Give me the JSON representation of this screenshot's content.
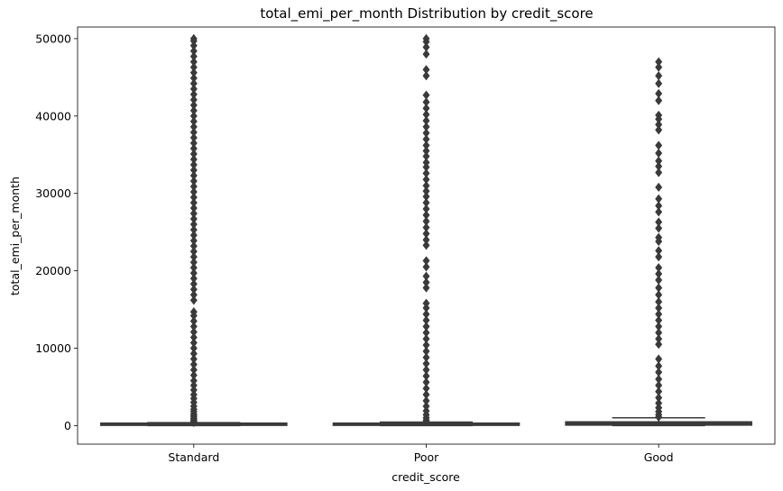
{
  "chart_data": {
    "type": "box",
    "title": "total_emi_per_month Distribution by credit_score",
    "xlabel": "credit_score",
    "ylabel": "total_emi_per_month",
    "categories": [
      "Standard",
      "Poor",
      "Good"
    ],
    "ylim": [
      -2400,
      51500
    ],
    "yticks": [
      0,
      10000,
      20000,
      30000,
      40000,
      50000
    ],
    "grid": false,
    "color": "#3a3a3a",
    "boxes": [
      {
        "category": "Standard",
        "q1": 30,
        "median": 70,
        "q3": 170,
        "whisker_low": 0,
        "whisker_high": 380,
        "outliers": [
          400,
          500,
          600,
          750,
          900,
          1100,
          1300,
          1500,
          1800,
          2100,
          2500,
          3000,
          3500,
          4000,
          4600,
          5200,
          5800,
          6500,
          7200,
          7900,
          8600,
          9300,
          10000,
          10700,
          11400,
          12100,
          12800,
          13500,
          14200,
          14700,
          16200,
          16900,
          17600,
          18300,
          19000,
          19700,
          20400,
          21100,
          21800,
          22500,
          23200,
          23900,
          24600,
          25300,
          26000,
          26700,
          27400,
          28100,
          28800,
          29500,
          30200,
          30900,
          31600,
          32300,
          33000,
          33700,
          34400,
          35100,
          35800,
          36500,
          37200,
          37900,
          38600,
          39300,
          40000,
          40700,
          41400,
          42100,
          42800,
          43500,
          44200,
          44900,
          45600,
          46300,
          47000,
          47700,
          48400,
          49100,
          49700,
          50000
        ]
      },
      {
        "category": "Poor",
        "q1": 30,
        "median": 80,
        "q3": 200,
        "whisker_low": 0,
        "whisker_high": 450,
        "outliers": [
          500,
          700,
          1000,
          1400,
          1900,
          2500,
          3200,
          4000,
          4800,
          5600,
          6400,
          7200,
          8000,
          8800,
          9600,
          10400,
          11200,
          12000,
          12800,
          13600,
          14400,
          15200,
          15800,
          17800,
          18500,
          19300,
          20500,
          21300,
          23300,
          24000,
          24800,
          25600,
          26400,
          27200,
          28000,
          28800,
          29600,
          30300,
          31000,
          31800,
          32600,
          33400,
          34000,
          34800,
          35500,
          36200,
          37000,
          37800,
          38600,
          39400,
          40200,
          41000,
          41800,
          42700,
          45200,
          46000,
          48000,
          48900,
          49600,
          50000
        ]
      },
      {
        "category": "Good",
        "q1": 60,
        "median": 180,
        "q3": 480,
        "whisker_low": 0,
        "whisker_high": 1000,
        "outliers": [
          1100,
          1400,
          1800,
          2300,
          2900,
          3600,
          4400,
          5200,
          6000,
          6900,
          7700,
          8600,
          10500,
          11200,
          12000,
          12800,
          13600,
          14400,
          15200,
          16000,
          16900,
          17800,
          18800,
          19600,
          20400,
          21800,
          22600,
          23800,
          24300,
          25500,
          26300,
          27600,
          28400,
          29300,
          30800,
          32700,
          33500,
          34200,
          35200,
          36200,
          38200,
          38900,
          39600,
          40100,
          42000,
          42900,
          44200,
          45200,
          46300,
          47000
        ]
      }
    ]
  }
}
